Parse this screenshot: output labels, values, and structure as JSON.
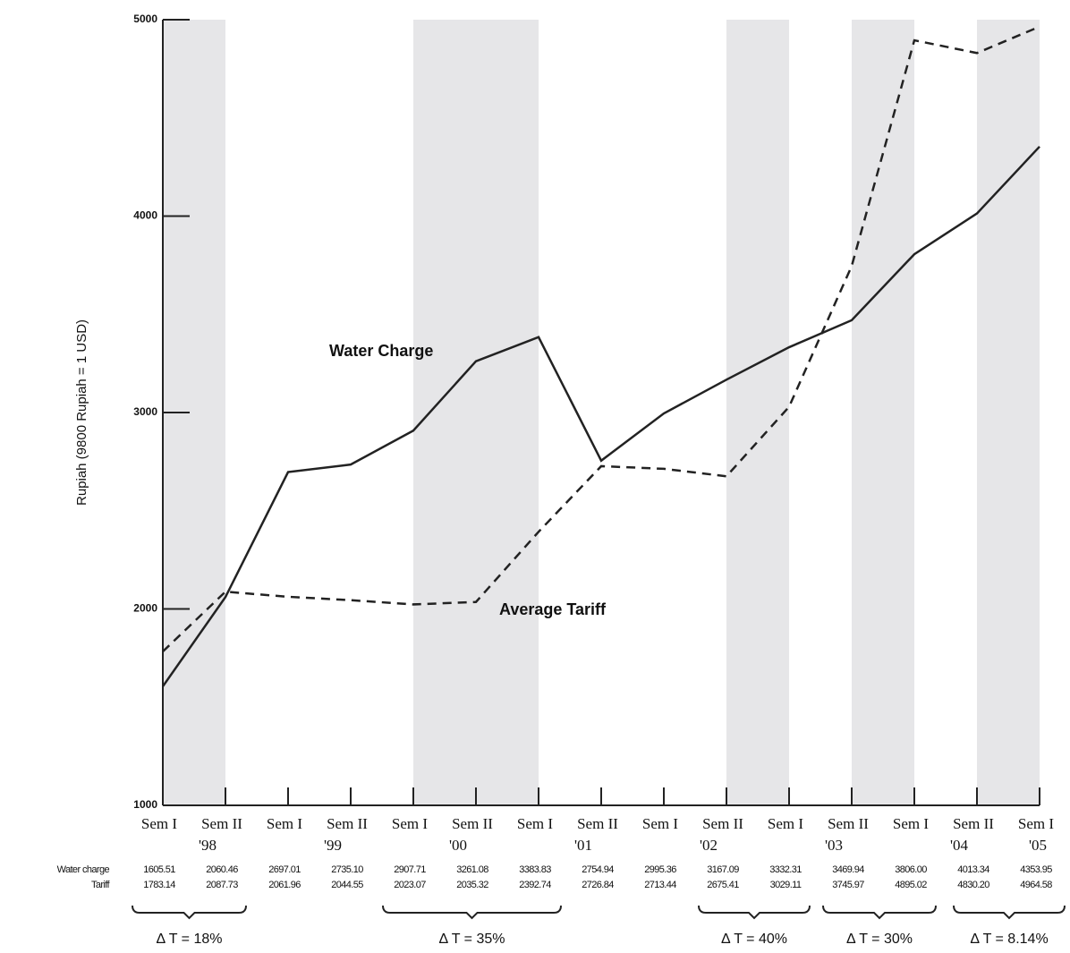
{
  "chart_data": {
    "type": "line",
    "y_label": "Rupiah (9800 Rupiah = 1 USD)",
    "categories": [
      "Sem I",
      "Sem II",
      "Sem I",
      "Sem II",
      "Sem I",
      "Sem II",
      "Sem I",
      "Sem II",
      "Sem I",
      "Sem II",
      "Sem I",
      "Sem II",
      "Sem I",
      "Sem II",
      "Sem I"
    ],
    "years": [
      "'98",
      "'99",
      "'00",
      "'01",
      "'02",
      "'03",
      "'04",
      "'05"
    ],
    "series": [
      {
        "name": "Water charge",
        "color": "#222222",
        "dashed": false,
        "annotation": "Water Charge",
        "values": [
          1605.51,
          2060.46,
          2697.01,
          2735.1,
          2907.71,
          3261.08,
          3383.83,
          2754.94,
          2995.36,
          3167.09,
          3332.31,
          3469.94,
          3806,
          4013.34,
          4353.95
        ],
        "value_labels": [
          "1605.51",
          "2060.46",
          "2697.01",
          "2735.10",
          "2907.71",
          "3261.08",
          "3383.83",
          "2754.94",
          "2995.36",
          "3167.09",
          "3332.31",
          "3469.94",
          "3806.00",
          "4013.34",
          "4353.95"
        ]
      },
      {
        "name": "Tariff",
        "color": "#222222",
        "dashed": true,
        "annotation": "Average Tariff",
        "values": [
          1783.14,
          2087.73,
          2061.96,
          2044.55,
          2023.07,
          2035.32,
          2392.74,
          2726.84,
          2713.44,
          2675.41,
          3029.11,
          3745.97,
          4895.02,
          4830.2,
          4964.58
        ],
        "value_labels": [
          "1783.14",
          "2087.73",
          "2061.96",
          "2044.55",
          "2023.07",
          "2035.32",
          "2392.74",
          "2726.84",
          "2713.44",
          "2675.41",
          "3029.11",
          "3745.97",
          "4895.02",
          "4830.20",
          "4964.58"
        ]
      }
    ],
    "deltas": [
      "Δ T = 18%",
      "Δ T = 35%",
      "Δ T = 40%",
      "Δ T = 30%",
      "Δ T = 8.14%"
    ],
    "ylim": [
      1000,
      5000
    ],
    "yticks": [
      1000,
      2000,
      3000,
      4000,
      5000
    ],
    "grid": false
  }
}
